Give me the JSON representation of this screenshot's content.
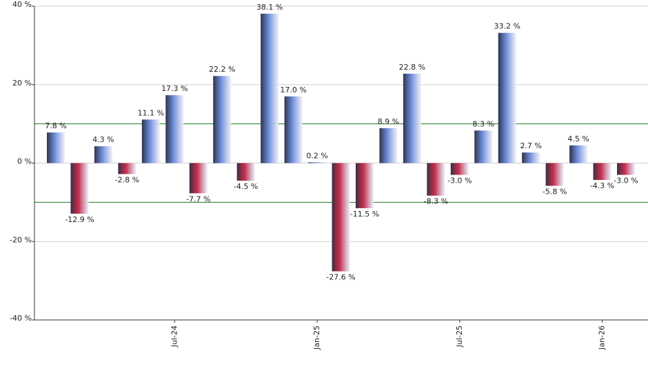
{
  "chart_data": {
    "type": "bar",
    "categories": [
      null,
      null,
      null,
      null,
      null,
      "Jul-24",
      null,
      null,
      null,
      null,
      null,
      "Jan-25",
      null,
      null,
      null,
      null,
      null,
      "Jul-25",
      null,
      null,
      null,
      null,
      null,
      "Jan-26",
      null
    ],
    "values": [
      7.8,
      -12.9,
      4.3,
      -2.8,
      11.1,
      17.3,
      -7.7,
      22.2,
      -4.5,
      38.1,
      17.0,
      0.2,
      -27.6,
      -11.5,
      8.9,
      22.8,
      -8.3,
      -3.0,
      8.3,
      33.2,
      2.7,
      -5.8,
      4.5,
      -4.3,
      -3.0
    ],
    "value_labels": [
      "7.8 %",
      "-12.9 %",
      "4.3 %",
      "-2.8 %",
      "11.1 %",
      "17.3 %",
      "-7.7 %",
      "22.2 %",
      "-4.5 %",
      "38.1 %",
      "17.0 %",
      "0.2 %",
      "-27.6 %",
      "-11.5 %",
      "8.9 %",
      "22.8 %",
      "-8.3 %",
      "-3.0 %",
      "8.3 %",
      "33.2 %",
      "2.7 %",
      "-5.8 %",
      "4.5 %",
      "-4.3 %",
      "-3.0 %"
    ],
    "positive_color": "#6f90dd",
    "negative_color": "#c8304f",
    "ylim": [
      -40,
      40
    ],
    "yticks": [
      {
        "value": -40,
        "label": "-40 %"
      },
      {
        "value": -20,
        "label": "-20 %"
      },
      {
        "value": 0,
        "label": "0 %"
      },
      {
        "value": 20,
        "label": "20 %"
      },
      {
        "value": 40,
        "label": "40 %"
      }
    ],
    "grid": true,
    "reference_lines": [
      10,
      -10
    ],
    "reference_color": "#1a7a1a"
  }
}
